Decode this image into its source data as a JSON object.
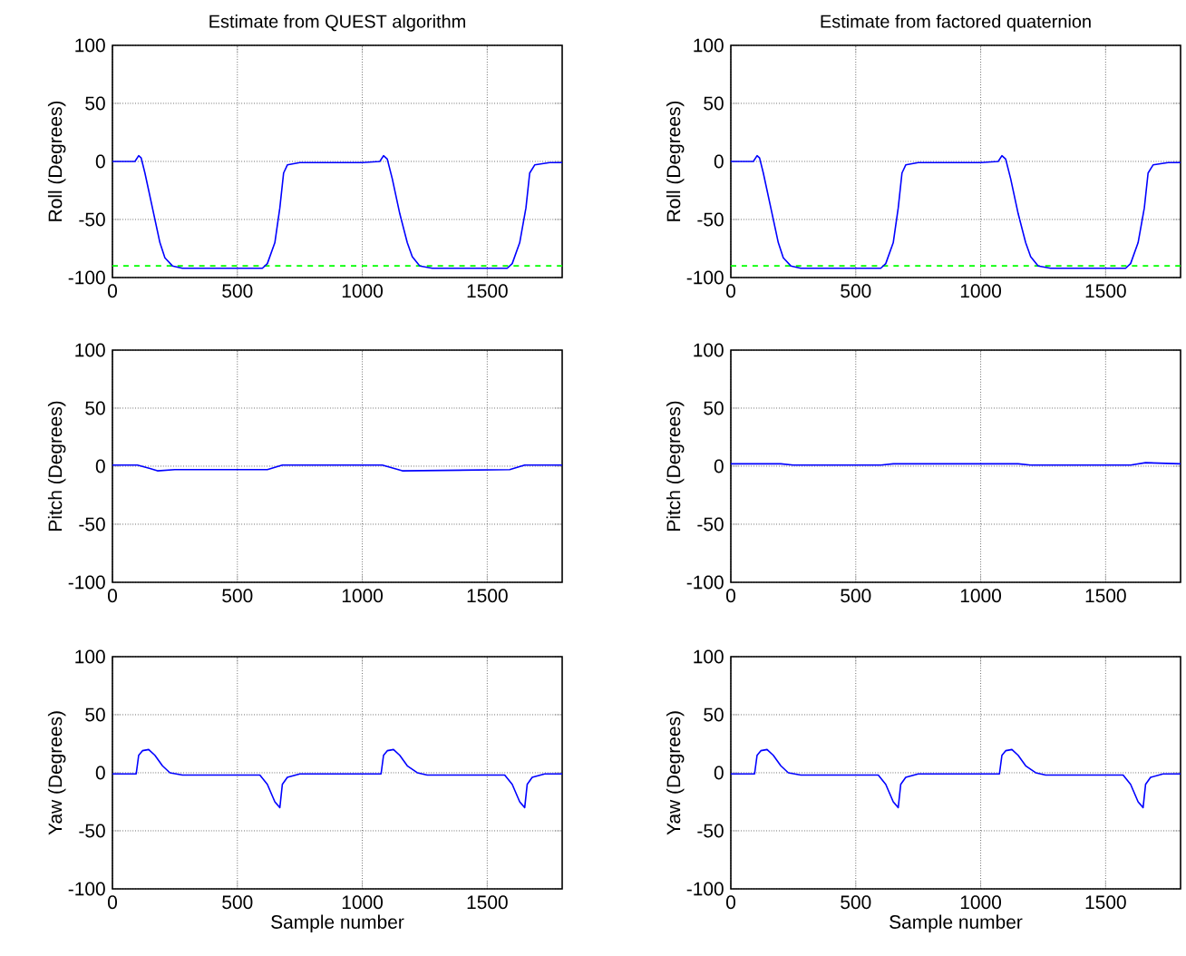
{
  "chart_data": [
    {
      "type": "line",
      "title": "Estimate from QUEST algorithm",
      "ylabel": "Roll (Degrees)",
      "xlim": [
        0,
        1800
      ],
      "xticks": [
        0,
        500,
        1000,
        1500
      ],
      "ylim": [
        -100,
        100
      ],
      "yticks": [
        -100,
        -50,
        0,
        50,
        100
      ],
      "grid": true,
      "ref_lines": [
        {
          "axis": "y",
          "value": -90,
          "color": "#00ff00",
          "line_style": "dashed"
        }
      ],
      "series": [
        {
          "color": "#0000ff",
          "x": [
            0,
            90,
            105,
            115,
            130,
            160,
            190,
            210,
            240,
            280,
            400,
            600,
            620,
            650,
            670,
            685,
            700,
            750,
            1000,
            1070,
            1085,
            1100,
            1120,
            1150,
            1180,
            1200,
            1230,
            1280,
            1580,
            1600,
            1630,
            1655,
            1670,
            1690,
            1750,
            1800
          ],
          "values": [
            0,
            0,
            5,
            3,
            -10,
            -40,
            -70,
            -83,
            -90,
            -92,
            -92,
            -92,
            -88,
            -70,
            -40,
            -10,
            -3,
            -1,
            -1,
            0,
            5,
            2,
            -15,
            -45,
            -70,
            -82,
            -90,
            -92,
            -92,
            -88,
            -70,
            -40,
            -10,
            -3,
            -1,
            -1
          ]
        }
      ]
    },
    {
      "type": "line",
      "title": "Estimate from factored quaternion",
      "ylabel": "Roll (Degrees)",
      "xlim": [
        0,
        1800
      ],
      "xticks": [
        0,
        500,
        1000,
        1500
      ],
      "ylim": [
        -100,
        100
      ],
      "yticks": [
        -100,
        -50,
        0,
        50,
        100
      ],
      "grid": true,
      "ref_lines": [
        {
          "axis": "y",
          "value": -90,
          "color": "#00ff00",
          "line_style": "dashed"
        }
      ],
      "series": [
        {
          "color": "#0000ff",
          "x": [
            0,
            90,
            105,
            115,
            130,
            160,
            190,
            210,
            240,
            280,
            400,
            600,
            620,
            650,
            670,
            685,
            700,
            750,
            1000,
            1070,
            1085,
            1100,
            1120,
            1150,
            1180,
            1200,
            1230,
            1280,
            1580,
            1600,
            1630,
            1655,
            1670,
            1690,
            1750,
            1800
          ],
          "values": [
            0,
            0,
            5,
            3,
            -10,
            -40,
            -70,
            -83,
            -90,
            -92,
            -92,
            -92,
            -88,
            -70,
            -40,
            -10,
            -3,
            -1,
            -1,
            0,
            5,
            2,
            -15,
            -45,
            -70,
            -82,
            -90,
            -92,
            -92,
            -88,
            -70,
            -40,
            -10,
            -3,
            -1,
            -1
          ]
        }
      ]
    },
    {
      "type": "line",
      "ylabel": "Pitch (Degrees)",
      "xlim": [
        0,
        1800
      ],
      "xticks": [
        0,
        500,
        1000,
        1500
      ],
      "ylim": [
        -100,
        100
      ],
      "yticks": [
        -100,
        -50,
        0,
        50,
        100
      ],
      "grid": true,
      "series": [
        {
          "color": "#0000ff",
          "x": [
            0,
            100,
            150,
            180,
            250,
            620,
            680,
            1080,
            1160,
            1590,
            1650,
            1800
          ],
          "values": [
            1,
            1,
            -2,
            -4,
            -3,
            -3,
            1,
            1,
            -4,
            -3,
            1,
            1
          ]
        }
      ]
    },
    {
      "type": "line",
      "ylabel": "Pitch (Degrees)",
      "xlim": [
        0,
        1800
      ],
      "xticks": [
        0,
        500,
        1000,
        1500
      ],
      "ylim": [
        -100,
        100
      ],
      "yticks": [
        -100,
        -50,
        0,
        50,
        100
      ],
      "grid": true,
      "series": [
        {
          "color": "#0000ff",
          "x": [
            0,
            200,
            250,
            600,
            650,
            1150,
            1200,
            1600,
            1660,
            1800
          ],
          "values": [
            2,
            2,
            1,
            1,
            2,
            2,
            1,
            1,
            3,
            2
          ]
        }
      ]
    },
    {
      "type": "line",
      "xlabel": "Sample number",
      "ylabel": "Yaw (Degrees)",
      "xlim": [
        0,
        1800
      ],
      "xticks": [
        0,
        500,
        1000,
        1500
      ],
      "ylim": [
        -100,
        100
      ],
      "yticks": [
        -100,
        -50,
        0,
        50,
        100
      ],
      "grid": true,
      "series": [
        {
          "color": "#0000ff",
          "x": [
            0,
            95,
            105,
            120,
            145,
            170,
            200,
            230,
            280,
            590,
            620,
            650,
            670,
            680,
            700,
            750,
            1075,
            1085,
            1100,
            1125,
            1150,
            1180,
            1220,
            1260,
            1570,
            1600,
            1630,
            1650,
            1660,
            1680,
            1730,
            1800
          ],
          "values": [
            -1,
            -1,
            15,
            19,
            20,
            15,
            6,
            0,
            -2,
            -2,
            -10,
            -25,
            -30,
            -10,
            -4,
            -1,
            -1,
            15,
            19,
            20,
            15,
            6,
            0,
            -2,
            -2,
            -10,
            -25,
            -30,
            -10,
            -4,
            -1,
            -1
          ]
        }
      ]
    },
    {
      "type": "line",
      "xlabel": "Sample number",
      "ylabel": "Yaw (Degrees)",
      "xlim": [
        0,
        1800
      ],
      "xticks": [
        0,
        500,
        1000,
        1500
      ],
      "ylim": [
        -100,
        100
      ],
      "yticks": [
        -100,
        -50,
        0,
        50,
        100
      ],
      "grid": true,
      "series": [
        {
          "color": "#0000ff",
          "x": [
            0,
            95,
            105,
            120,
            145,
            170,
            200,
            230,
            280,
            590,
            620,
            650,
            670,
            680,
            700,
            750,
            1075,
            1085,
            1100,
            1125,
            1150,
            1180,
            1220,
            1260,
            1570,
            1600,
            1630,
            1650,
            1660,
            1680,
            1730,
            1800
          ],
          "values": [
            -1,
            -1,
            15,
            19,
            20,
            15,
            6,
            0,
            -2,
            -2,
            -10,
            -25,
            -30,
            -10,
            -4,
            -1,
            -1,
            15,
            19,
            20,
            15,
            6,
            0,
            -2,
            -2,
            -10,
            -25,
            -30,
            -10,
            -4,
            -1,
            -1
          ]
        }
      ]
    }
  ]
}
